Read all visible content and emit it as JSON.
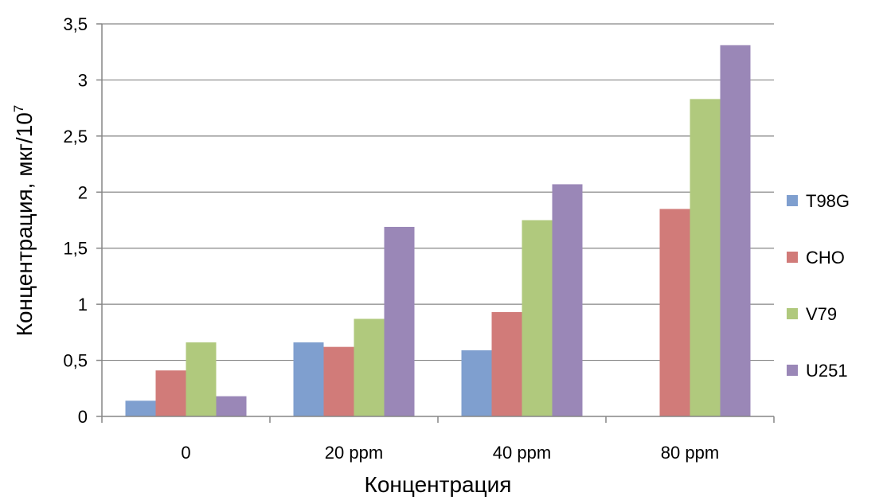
{
  "chart_data": {
    "type": "bar",
    "categories": [
      "0",
      "20 ppm",
      "40 ppm",
      "80 ppm"
    ],
    "series": [
      {
        "name": "T98G",
        "color": "#7f9fcf",
        "values": [
          0.14,
          0.66,
          0.59,
          0
        ]
      },
      {
        "name": "CHO",
        "color": "#d17b79",
        "values": [
          0.41,
          0.62,
          0.93,
          1.85
        ]
      },
      {
        "name": "V79",
        "color": "#b0c97d",
        "values": [
          0.66,
          0.87,
          1.75,
          2.83
        ]
      },
      {
        "name": "U251",
        "color": "#9a87b7",
        "values": [
          0.18,
          1.69,
          2.07,
          3.31
        ]
      }
    ],
    "xlabel": "Концентрация",
    "ylabel": "Концентрация, мкг/10",
    "ylabel_superscript": "7",
    "ylim": [
      0,
      3.5
    ],
    "yticks": [
      "0",
      "0,5",
      "1",
      "1,5",
      "2",
      "2,5",
      "3",
      "3,5"
    ],
    "grid": true,
    "legend_position": "right"
  }
}
